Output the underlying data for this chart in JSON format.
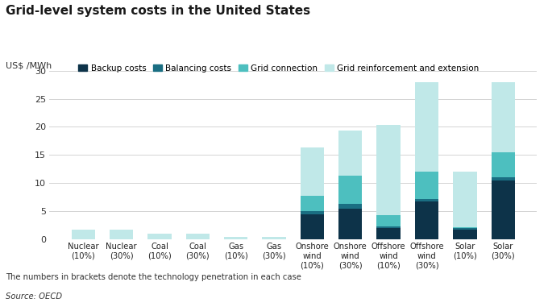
{
  "categories": [
    "Nuclear\n(10%)",
    "Nuclear\n(30%)",
    "Coal\n(10%)",
    "Coal\n(30%)",
    "Gas\n(10%)",
    "Gas\n(30%)",
    "Onshore\nwind\n(10%)",
    "Onshore\nwind\n(30%)",
    "Offshore\nwind\n(10%)",
    "Offshore\nwind\n(30%)",
    "Solar\n(10%)",
    "Solar\n(30%)"
  ],
  "backup": [
    0.0,
    0.0,
    0.0,
    0.0,
    0.0,
    0.0,
    4.5,
    5.5,
    2.0,
    6.8,
    1.8,
    10.5
  ],
  "balancing": [
    0.0,
    0.0,
    0.0,
    0.0,
    0.0,
    0.0,
    0.6,
    0.8,
    0.3,
    0.4,
    0.2,
    0.5
  ],
  "grid_conn": [
    0.0,
    0.0,
    0.0,
    0.0,
    0.0,
    0.0,
    2.7,
    5.0,
    2.0,
    4.8,
    0.2,
    4.5
  ],
  "grid_reinf": [
    1.7,
    1.7,
    1.0,
    1.0,
    0.5,
    0.5,
    8.5,
    8.0,
    16.0,
    16.0,
    9.8,
    12.5
  ],
  "color_backup": "#0d3349",
  "color_balancing": "#1a6e82",
  "color_grid_conn": "#4dbfbf",
  "color_grid_reinf": "#c0e8e8",
  "title": "Grid-level system costs in the United States",
  "ylabel": "US$ /MWh",
  "ylim": [
    0,
    30
  ],
  "yticks": [
    0,
    5,
    10,
    15,
    20,
    25,
    30
  ],
  "legend_labels": [
    "Backup costs",
    "Balancing costs",
    "Grid connection",
    "Grid reinforcement and extension"
  ],
  "footnote1": "The numbers in brackets denote the technology penetration in each case",
  "footnote2": "Source: OECD",
  "bg_color": "#ffffff"
}
